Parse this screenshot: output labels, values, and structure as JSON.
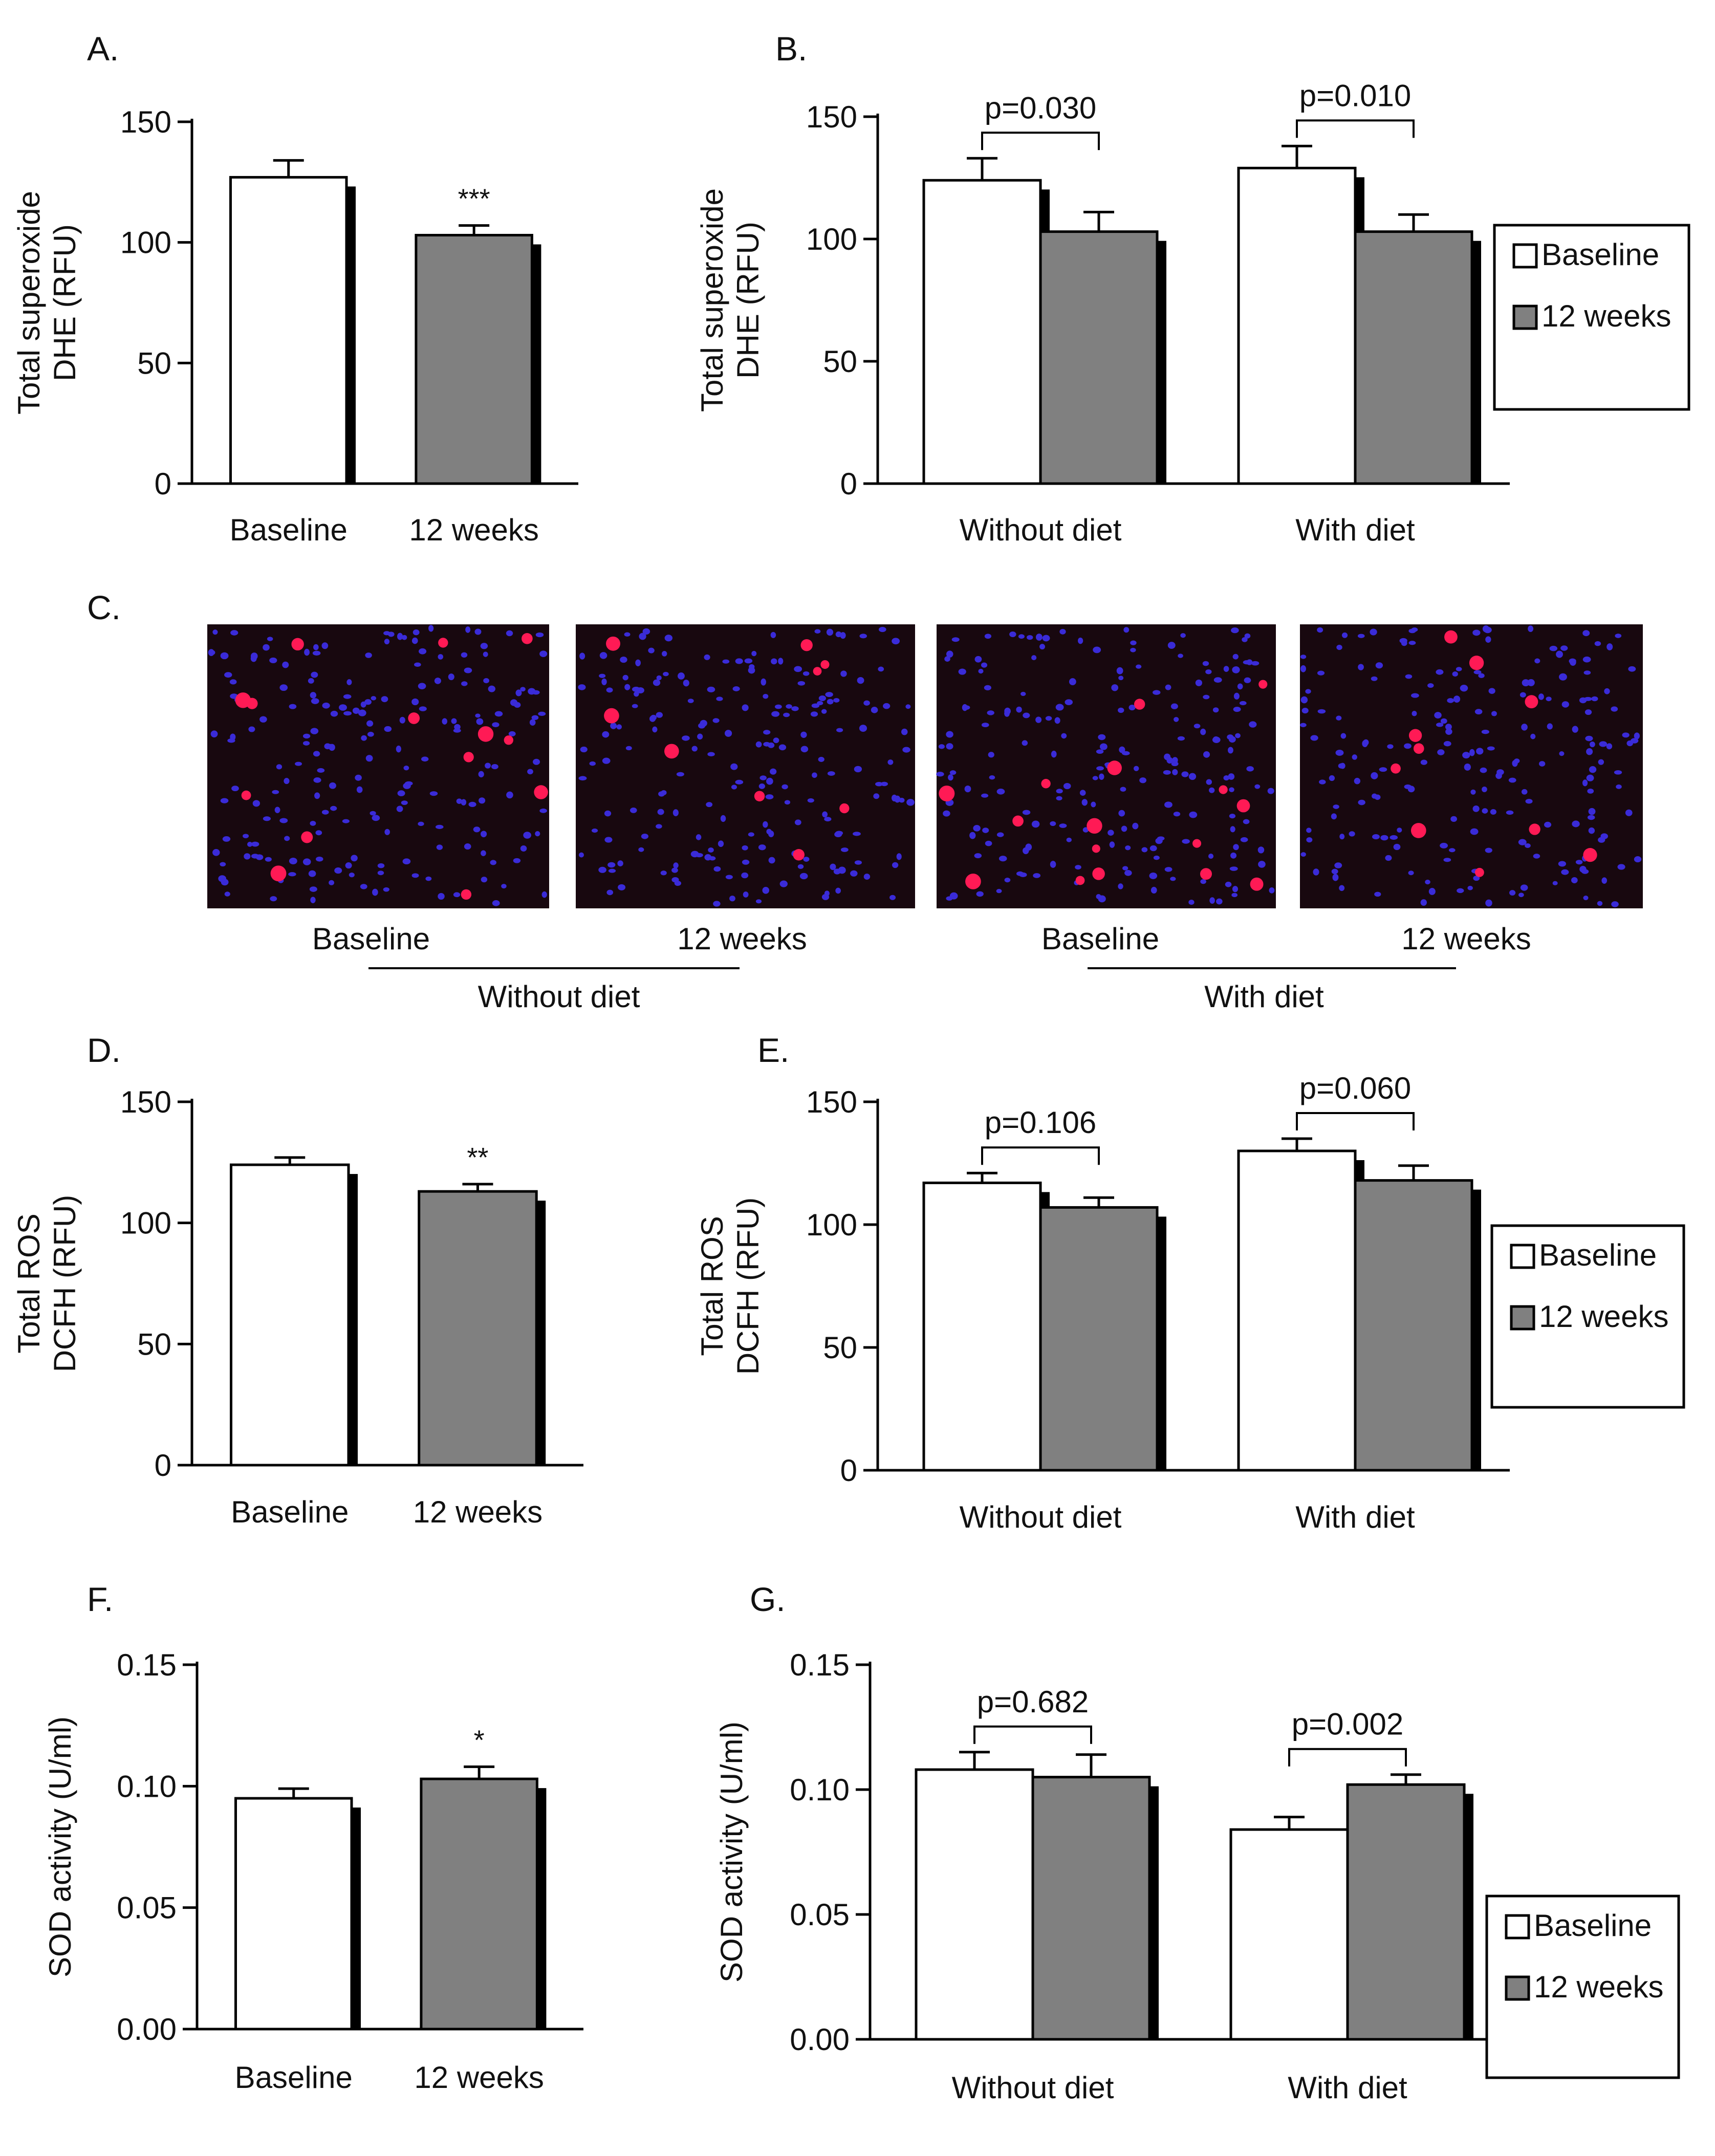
{
  "colors": {
    "baseline": "#ffffff",
    "weeks12": "#808080",
    "shadow": "#000000",
    "axis": "#000000",
    "red": "#ff1a55",
    "blue": "#3a2bd8",
    "bg_image": "#18080f"
  },
  "legend": {
    "baseline": "Baseline",
    "weeks12": "12 weeks"
  },
  "chart_data": [
    {
      "id": "A",
      "panel_label": "A.",
      "type": "bar",
      "ylabel": [
        "Total superoxide",
        "DHE (RFU)"
      ],
      "ylim": [
        0,
        150
      ],
      "yticks": [
        0,
        50,
        100,
        150
      ],
      "tick_labels": [
        "0",
        "50",
        "100",
        "150"
      ],
      "categories": [
        "Baseline",
        "12 weeks"
      ],
      "values": [
        127,
        103
      ],
      "errors": [
        7,
        4
      ],
      "fills": [
        "baseline",
        "weeks12"
      ],
      "annotation": "***"
    },
    {
      "id": "B",
      "panel_label": "B.",
      "type": "bar",
      "ylabel": [
        "Total superoxide",
        "DHE (RFU)"
      ],
      "ylim": [
        0,
        150
      ],
      "yticks": [
        0,
        50,
        100,
        150
      ],
      "tick_labels": [
        "0",
        "50",
        "100",
        "150"
      ],
      "groups": [
        "Without diet",
        "With diet"
      ],
      "series": [
        {
          "name": "Baseline",
          "values": [
            124,
            129
          ],
          "errors": [
            9,
            9
          ]
        },
        {
          "name": "12 weeks",
          "values": [
            103,
            103
          ],
          "errors": [
            8,
            7
          ]
        }
      ],
      "pvalues": [
        "p=0.030",
        "p=0.010"
      ]
    },
    {
      "id": "D",
      "panel_label": "D.",
      "type": "bar",
      "ylabel": [
        "Total ROS",
        "DCFH (RFU)"
      ],
      "ylim": [
        0,
        150
      ],
      "yticks": [
        0,
        50,
        100,
        150
      ],
      "tick_labels": [
        "0",
        "50",
        "100",
        "150"
      ],
      "categories": [
        "Baseline",
        "12 weeks"
      ],
      "values": [
        124,
        113
      ],
      "errors": [
        3,
        3
      ],
      "fills": [
        "baseline",
        "weeks12"
      ],
      "annotation": "**"
    },
    {
      "id": "E",
      "panel_label": "E.",
      "type": "bar",
      "ylabel": [
        "Total ROS",
        "DCFH (RFU)"
      ],
      "ylim": [
        0,
        150
      ],
      "yticks": [
        0,
        50,
        100,
        150
      ],
      "tick_labels": [
        "0",
        "50",
        "100",
        "150"
      ],
      "groups": [
        "Without diet",
        "With diet"
      ],
      "series": [
        {
          "name": "Baseline",
          "values": [
            117,
            130
          ],
          "errors": [
            4,
            5
          ]
        },
        {
          "name": "12 weeks",
          "values": [
            107,
            118
          ],
          "errors": [
            4,
            6
          ]
        }
      ],
      "pvalues": [
        "p=0.106",
        "p=0.060"
      ]
    },
    {
      "id": "F",
      "panel_label": "F.",
      "type": "bar",
      "ylabel": [
        "SOD activity (U/ml)"
      ],
      "ylim": [
        0,
        0.15
      ],
      "yticks": [
        0,
        0.05,
        0.1,
        0.15
      ],
      "tick_labels": [
        "0.00",
        "0.05",
        "0.10",
        "0.15"
      ],
      "categories": [
        "Baseline",
        "12 weeks"
      ],
      "values": [
        0.095,
        0.103
      ],
      "errors": [
        0.004,
        0.005
      ],
      "fills": [
        "baseline",
        "weeks12"
      ],
      "annotation": "*"
    },
    {
      "id": "G",
      "panel_label": "G.",
      "type": "bar",
      "ylabel": [
        "SOD activity (U/ml)"
      ],
      "ylim": [
        0,
        0.15
      ],
      "yticks": [
        0,
        0.05,
        0.1,
        0.15
      ],
      "tick_labels": [
        "0.00",
        "0.05",
        "0.10",
        "0.15"
      ],
      "groups": [
        "Without diet",
        "With diet"
      ],
      "series": [
        {
          "name": "Baseline",
          "values": [
            0.108,
            0.084
          ],
          "errors": [
            0.007,
            0.005
          ]
        },
        {
          "name": "12 weeks",
          "values": [
            0.105,
            0.102
          ],
          "errors": [
            0.009,
            0.004
          ]
        }
      ],
      "pvalues": [
        "p=0.682",
        "p=0.002"
      ]
    }
  ],
  "panel_c": {
    "panel_label": "C.",
    "images": [
      {
        "caption": "Baseline",
        "seed": 11,
        "red_cells": 14
      },
      {
        "caption": "12 weeks",
        "seed": 23,
        "red_cells": 9
      },
      {
        "caption": "Baseline",
        "seed": 37,
        "red_cells": 16
      },
      {
        "caption": "12 weeks",
        "seed": 53,
        "red_cells": 10
      }
    ],
    "groups": [
      "Without diet",
      "With diet"
    ]
  }
}
